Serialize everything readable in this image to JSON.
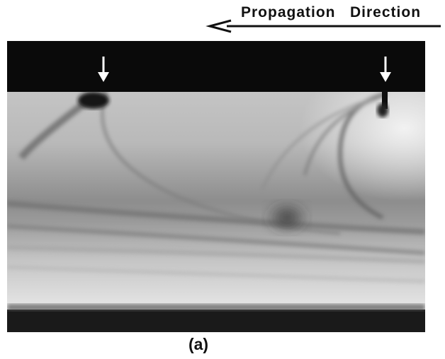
{
  "header": {
    "label": "Propagation   Direction"
  },
  "figure": {
    "caption": "(a)"
  }
}
